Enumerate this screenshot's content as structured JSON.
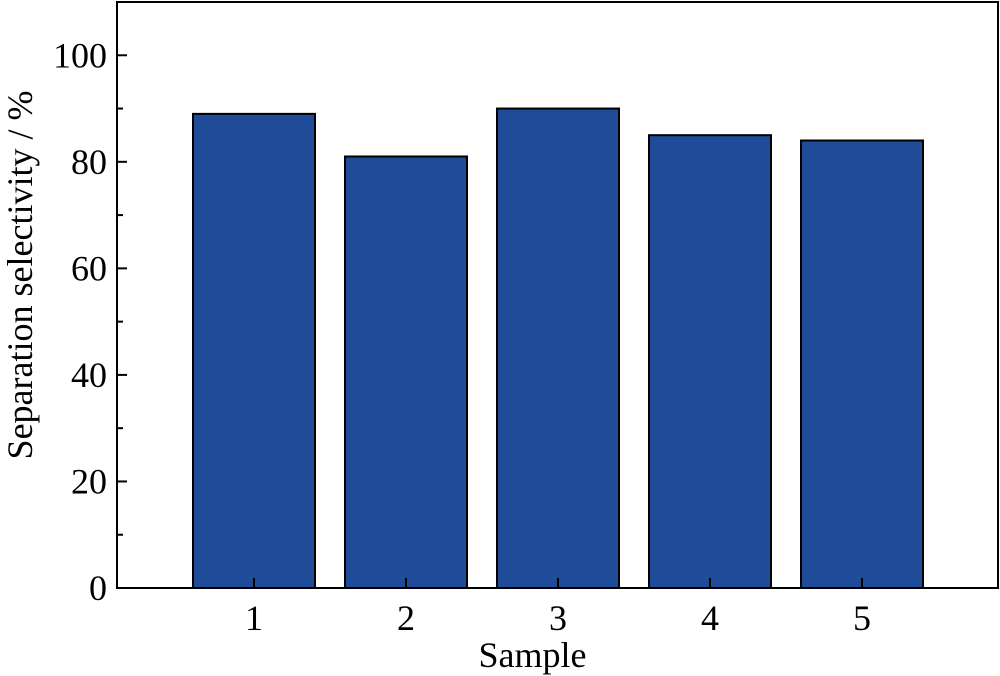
{
  "chart_data": {
    "type": "bar",
    "categories": [
      "1",
      "2",
      "3",
      "4",
      "5"
    ],
    "values": [
      89,
      81,
      90,
      85,
      84
    ],
    "xlabel": "Sample",
    "ylabel": "Separation selectivity / %",
    "ylim": [
      0,
      110
    ],
    "yticks": [
      0,
      20,
      40,
      60,
      80,
      100
    ],
    "bar_color": "#1f4b99",
    "grid": false,
    "legend": "none"
  }
}
